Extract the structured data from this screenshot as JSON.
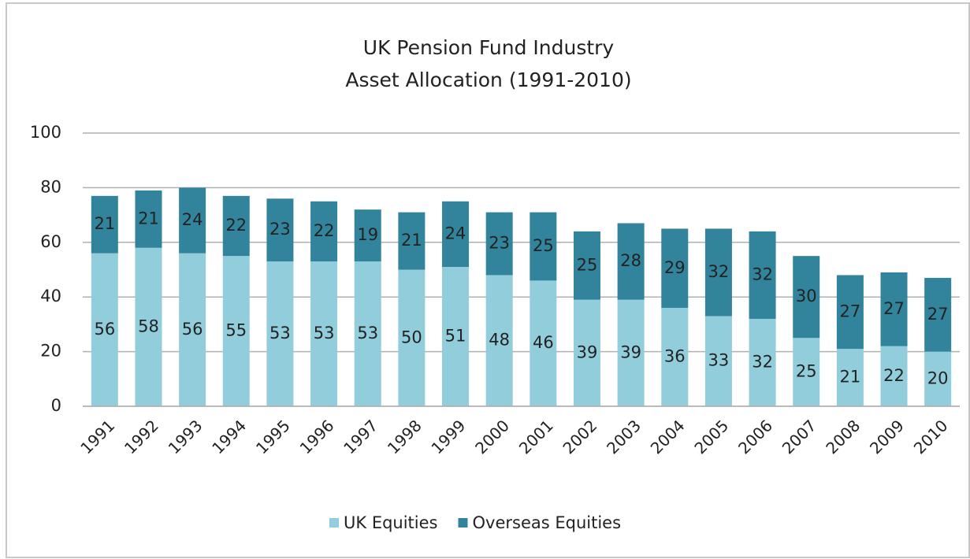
{
  "chart_data": {
    "type": "stacked-bar",
    "title": [
      "UK Pension Fund Industry",
      "Asset Allocation (1991-2010)"
    ],
    "categories": [
      "1991",
      "1992",
      "1993",
      "1994",
      "1995",
      "1996",
      "1997",
      "1998",
      "1999",
      "2000",
      "2001",
      "2002",
      "2003",
      "2004",
      "2005",
      "2006",
      "2007",
      "2008",
      "2009",
      "2010"
    ],
    "series": [
      {
        "name": "UK Equities",
        "color": "#92cddc",
        "values": [
          56,
          58,
          56,
          55,
          53,
          53,
          53,
          50,
          51,
          48,
          46,
          39,
          39,
          36,
          33,
          32,
          25,
          21,
          22,
          20
        ]
      },
      {
        "name": "Overseas Equities",
        "color": "#31849b",
        "values": [
          21,
          21,
          24,
          22,
          23,
          22,
          19,
          21,
          24,
          23,
          25,
          25,
          28,
          29,
          32,
          32,
          30,
          27,
          27,
          27
        ]
      }
    ],
    "ylim": [
      0,
      100
    ],
    "yticks": [
      0,
      20,
      40,
      60,
      80,
      100
    ],
    "grid": true,
    "legend": "bottom"
  }
}
